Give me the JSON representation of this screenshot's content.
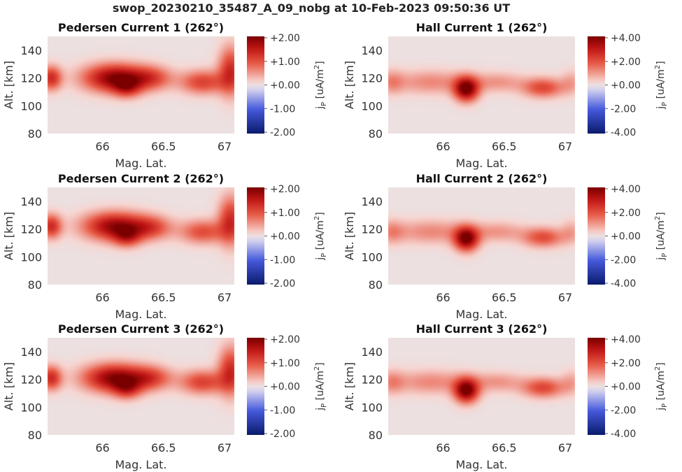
{
  "figure": {
    "suptitle": "swop_20230210_35487_A_09_nobg at 10-Feb-2023 09:50:36 UT",
    "colormap": "seismic-like (navy-blue-white-red-darkred)",
    "background_color": "#ece0e1",
    "colors": {
      "neg_end": "#0a1a6b",
      "pos_end": "#7a0000",
      "zero": "#ece0e1"
    }
  },
  "chart_data": [
    {
      "type": "heatmap",
      "title": "Pedersen Current 1 (262°)",
      "xlabel": "Mag. Lat.",
      "ylabel": "Alt. [km]",
      "xlim": [
        65.55,
        67.08
      ],
      "ylim": [
        80,
        150
      ],
      "xticks": [
        "66",
        "66.5",
        "67"
      ],
      "yticks": [
        "80",
        "100",
        "120",
        "140"
      ],
      "colorbar": {
        "label": "jP [uA/m2]",
        "label_main": "j",
        "label_sub": "P",
        "label_units": " [uA/m",
        "label_sup": "2",
        "label_close": "]",
        "ticks": [
          "+2.00",
          "+1.00",
          "+0.00",
          "-1.00",
          "-2.00"
        ],
        "vmin": -2,
        "vmax": 2
      },
      "features": [
        {
          "lat": 65.58,
          "alt": 120,
          "amp": 1.3,
          "dlat": 0.06,
          "dalt": 6
        },
        {
          "lat": 66.1,
          "alt": 120,
          "amp": 1.9,
          "dlat": 0.18,
          "dalt": 7
        },
        {
          "lat": 66.2,
          "alt": 113,
          "amp": 0.9,
          "dlat": 0.08,
          "dalt": 5
        },
        {
          "lat": 66.4,
          "alt": 120,
          "amp": 0.9,
          "dlat": 0.12,
          "dalt": 6
        },
        {
          "lat": 66.82,
          "alt": 117,
          "amp": 1.1,
          "dlat": 0.13,
          "dalt": 6
        },
        {
          "lat": 67.05,
          "alt": 125,
          "amp": 1.3,
          "dlat": 0.07,
          "dalt": 12
        }
      ]
    },
    {
      "type": "heatmap",
      "title": "Hall Current 1 (262°)",
      "xlabel": "Mag. Lat.",
      "ylabel": "Alt. [km]",
      "xlim": [
        65.55,
        67.08
      ],
      "ylim": [
        80,
        150
      ],
      "xticks": [
        "66",
        "66.5",
        "67"
      ],
      "yticks": [
        "80",
        "100",
        "120",
        "140"
      ],
      "colorbar": {
        "label": "jP [uA/m2]",
        "label_main": "j",
        "label_sub": "P",
        "label_units": " [uA/m",
        "label_sup": "2",
        "label_close": "]",
        "ticks": [
          "+4.00",
          "+2.00",
          "+0.00",
          "-2.00",
          "-4.00"
        ],
        "vmin": -4,
        "vmax": 4
      },
      "features": [
        {
          "lat": 65.58,
          "alt": 117,
          "amp": 1.0,
          "dlat": 0.07,
          "dalt": 6
        },
        {
          "lat": 65.9,
          "alt": 117,
          "amp": 1.2,
          "dlat": 0.22,
          "dalt": 6
        },
        {
          "lat": 66.19,
          "alt": 112,
          "amp": 4.0,
          "dlat": 0.07,
          "dalt": 6
        },
        {
          "lat": 66.45,
          "alt": 117,
          "amp": 1.0,
          "dlat": 0.15,
          "dalt": 5
        },
        {
          "lat": 66.82,
          "alt": 113,
          "amp": 2.1,
          "dlat": 0.12,
          "dalt": 5
        },
        {
          "lat": 67.05,
          "alt": 117,
          "amp": 0.8,
          "dlat": 0.06,
          "dalt": 6
        }
      ]
    },
    {
      "type": "heatmap",
      "title": "Pedersen Current 2 (262°)",
      "xlabel": "Mag. Lat.",
      "ylabel": "Alt. [km]",
      "xlim": [
        65.55,
        67.08
      ],
      "ylim": [
        80,
        150
      ],
      "xticks": [
        "66",
        "66.5",
        "67"
      ],
      "yticks": [
        "80",
        "100",
        "120",
        "140"
      ],
      "colorbar": {
        "label": "jP [uA/m2]",
        "label_main": "j",
        "label_sub": "P",
        "label_units": " [uA/m",
        "label_sup": "2",
        "label_close": "]",
        "ticks": [
          "+2.00",
          "+1.00",
          "+0.00",
          "-1.00",
          "-2.00"
        ],
        "vmin": -2,
        "vmax": 2
      },
      "features": [
        {
          "lat": 65.58,
          "alt": 122,
          "amp": 1.3,
          "dlat": 0.06,
          "dalt": 6
        },
        {
          "lat": 66.1,
          "alt": 122,
          "amp": 1.8,
          "dlat": 0.18,
          "dalt": 7
        },
        {
          "lat": 66.2,
          "alt": 114,
          "amp": 0.9,
          "dlat": 0.08,
          "dalt": 5
        },
        {
          "lat": 66.4,
          "alt": 121,
          "amp": 0.9,
          "dlat": 0.12,
          "dalt": 6
        },
        {
          "lat": 66.82,
          "alt": 118,
          "amp": 1.0,
          "dlat": 0.13,
          "dalt": 6
        },
        {
          "lat": 67.05,
          "alt": 126,
          "amp": 1.3,
          "dlat": 0.07,
          "dalt": 12
        }
      ]
    },
    {
      "type": "heatmap",
      "title": "Hall Current 2 (262°)",
      "xlabel": "Mag. Lat.",
      "ylabel": "Alt. [km]",
      "xlim": [
        65.55,
        67.08
      ],
      "ylim": [
        80,
        150
      ],
      "xticks": [
        "66",
        "66.5",
        "67"
      ],
      "yticks": [
        "80",
        "100",
        "120",
        "140"
      ],
      "colorbar": {
        "label": "jP [uA/m2]",
        "label_main": "j",
        "label_sub": "P",
        "label_units": " [uA/m",
        "label_sup": "2",
        "label_close": "]",
        "ticks": [
          "+4.00",
          "+2.00",
          "+0.00",
          "-2.00",
          "-4.00"
        ],
        "vmin": -4,
        "vmax": 4
      },
      "features": [
        {
          "lat": 65.58,
          "alt": 118,
          "amp": 1.0,
          "dlat": 0.07,
          "dalt": 6
        },
        {
          "lat": 65.9,
          "alt": 118,
          "amp": 1.2,
          "dlat": 0.22,
          "dalt": 6
        },
        {
          "lat": 66.19,
          "alt": 113,
          "amp": 3.9,
          "dlat": 0.07,
          "dalt": 6
        },
        {
          "lat": 66.45,
          "alt": 118,
          "amp": 1.0,
          "dlat": 0.15,
          "dalt": 5
        },
        {
          "lat": 66.82,
          "alt": 114,
          "amp": 2.0,
          "dlat": 0.12,
          "dalt": 5
        },
        {
          "lat": 67.05,
          "alt": 118,
          "amp": 0.8,
          "dlat": 0.06,
          "dalt": 6
        }
      ]
    },
    {
      "type": "heatmap",
      "title": "Pedersen Current 3 (262°)",
      "xlabel": "Mag. Lat.",
      "ylabel": "Alt. [km]",
      "xlim": [
        65.55,
        67.08
      ],
      "ylim": [
        80,
        150
      ],
      "xticks": [
        "66",
        "66.5",
        "67"
      ],
      "yticks": [
        "80",
        "100",
        "120",
        "140"
      ],
      "colorbar": {
        "label": "jP [uA/m2]",
        "label_main": "j",
        "label_sub": "P",
        "label_units": " [uA/m",
        "label_sup": "2",
        "label_close": "]",
        "ticks": [
          "+2.00",
          "+1.00",
          "+0.00",
          "-1.00",
          "-2.00"
        ],
        "vmin": -2,
        "vmax": 2
      },
      "features": [
        {
          "lat": 65.58,
          "alt": 121,
          "amp": 1.3,
          "dlat": 0.06,
          "dalt": 6
        },
        {
          "lat": 66.1,
          "alt": 121,
          "amp": 1.9,
          "dlat": 0.18,
          "dalt": 7
        },
        {
          "lat": 66.2,
          "alt": 113,
          "amp": 0.9,
          "dlat": 0.08,
          "dalt": 5
        },
        {
          "lat": 66.4,
          "alt": 121,
          "amp": 0.9,
          "dlat": 0.12,
          "dalt": 6
        },
        {
          "lat": 66.82,
          "alt": 118,
          "amp": 1.1,
          "dlat": 0.13,
          "dalt": 6
        },
        {
          "lat": 67.05,
          "alt": 126,
          "amp": 1.3,
          "dlat": 0.07,
          "dalt": 12
        }
      ]
    },
    {
      "type": "heatmap",
      "title": "Hall Current 3 (262°)",
      "xlabel": "Mag. Lat.",
      "ylabel": "Alt. [km]",
      "xlim": [
        65.55,
        67.08
      ],
      "ylim": [
        80,
        150
      ],
      "xticks": [
        "66",
        "66.5",
        "67"
      ],
      "yticks": [
        "80",
        "100",
        "120",
        "140"
      ],
      "colorbar": {
        "label": "jP [uA/m2]",
        "label_main": "j",
        "label_sub": "P",
        "label_units": " [uA/m",
        "label_sup": "2",
        "label_close": "]",
        "ticks": [
          "+4.00",
          "+2.00",
          "+0.00",
          "-2.00",
          "-4.00"
        ],
        "vmin": -4,
        "vmax": 4
      },
      "features": [
        {
          "lat": 65.58,
          "alt": 118,
          "amp": 1.0,
          "dlat": 0.07,
          "dalt": 6
        },
        {
          "lat": 65.9,
          "alt": 118,
          "amp": 1.2,
          "dlat": 0.22,
          "dalt": 6
        },
        {
          "lat": 66.19,
          "alt": 112,
          "amp": 4.0,
          "dlat": 0.07,
          "dalt": 6
        },
        {
          "lat": 66.45,
          "alt": 118,
          "amp": 1.0,
          "dlat": 0.15,
          "dalt": 5
        },
        {
          "lat": 66.82,
          "alt": 114,
          "amp": 2.1,
          "dlat": 0.12,
          "dalt": 5
        },
        {
          "lat": 67.05,
          "alt": 118,
          "amp": 0.8,
          "dlat": 0.06,
          "dalt": 6
        }
      ]
    }
  ]
}
